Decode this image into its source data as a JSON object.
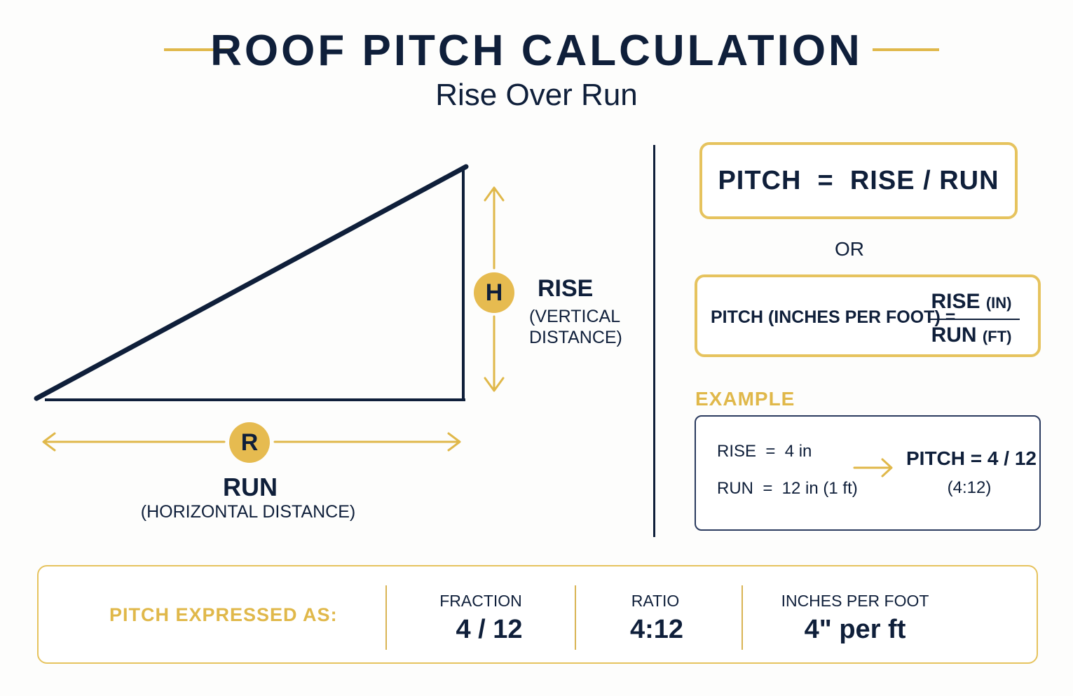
{
  "header": {
    "title": "ROOF PITCH CALCULATION",
    "subtitle": "Rise Over Run"
  },
  "diagram": {
    "rise": {
      "badge": "H",
      "label": "RISE",
      "sublabel_line1": "(VERTICAL",
      "sublabel_line2": "DISTANCE)"
    },
    "run": {
      "badge": "R",
      "label": "RUN",
      "sublabel": "(HORIZONTAL DISTANCE)"
    }
  },
  "formulas": {
    "primary": "PITCH  =  RISE / RUN",
    "or": "OR",
    "secondary": {
      "left": "PITCH (INCHES PER FOOT) =",
      "numerator": "RISE",
      "numerator_unit": "(IN)",
      "denominator": "RUN",
      "denominator_unit": "(FT)"
    }
  },
  "example": {
    "heading": "EXAMPLE",
    "rise": "RISE  =  4 in",
    "run": "RUN  =  12 in (1 ft)",
    "result": "PITCH = 4 / 12",
    "result_ratio": "(4:12)"
  },
  "expressed": {
    "heading": "PITCH EXPRESSED AS:",
    "columns": [
      {
        "label": "FRACTION",
        "value": "4 / 12"
      },
      {
        "label": "RATIO",
        "value": "4:12"
      },
      {
        "label": "INCHES PER FOOT",
        "value": "4\" per ft"
      }
    ]
  },
  "colors": {
    "navy": "#0f1f3a",
    "gold": "#e6bb50"
  }
}
